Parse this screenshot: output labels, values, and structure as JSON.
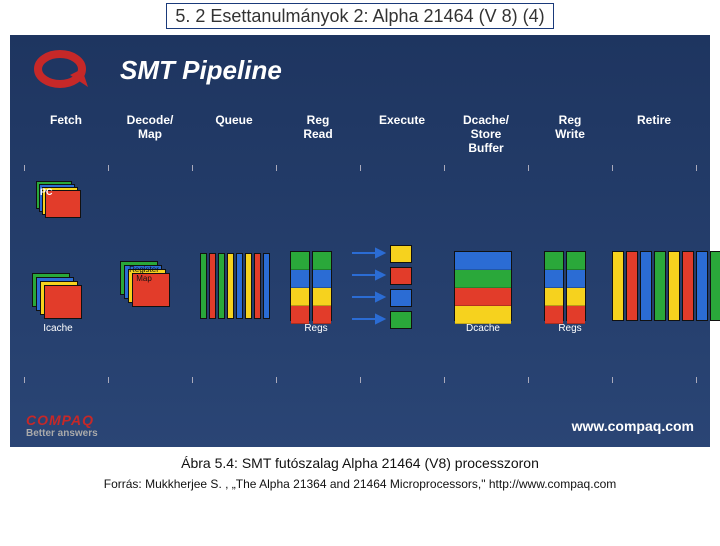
{
  "slide_title": "5. 2 Esettanulmányok 2: Alpha 21464 (V 8) (4)",
  "diagram": {
    "title": "SMT Pipeline",
    "background": "#24406e",
    "stages": [
      {
        "label_line1": "Fetch"
      },
      {
        "label_line1": "Decode/",
        "label_line2": "Map"
      },
      {
        "label_line1": "Queue"
      },
      {
        "label_line1": "Reg",
        "label_line2": "Read"
      },
      {
        "label_line1": "Execute"
      },
      {
        "label_line1": "Dcache/",
        "label_line2": "Store",
        "label_line3": "Buffer"
      },
      {
        "label_line1": "Reg",
        "label_line2": "Write"
      },
      {
        "label_line1": "Retire"
      }
    ],
    "stage_width_pct": 12.5,
    "thread_colors": [
      "#2aa83a",
      "#2b6cd4",
      "#f6d21e",
      "#e23c2a"
    ],
    "pc_label": "PC",
    "regmap_label": "Register\nMap",
    "icache_label": "Icache",
    "regs_label": "Regs",
    "dcache_label": "Dcache",
    "queue_bar_colors": [
      "#2aa83a",
      "#e23c2a",
      "#2aa83a",
      "#f6d21e",
      "#2b6cd4",
      "#f6d21e",
      "#e23c2a",
      "#2b6cd4"
    ],
    "retire_bar_colors": [
      "#f6d21e",
      "#e23c2a",
      "#2b6cd4",
      "#2aa83a",
      "#f6d21e",
      "#e23c2a",
      "#2b6cd4",
      "#2aa83a"
    ],
    "arrow_color": "#2b6cd4",
    "exec_box_colors": [
      "#f6d21e",
      "#e23c2a",
      "#2b6cd4",
      "#2aa83a"
    ],
    "dcache_row_colors": [
      "#2b6cd4",
      "#2aa83a",
      "#e23c2a",
      "#f6d21e"
    ],
    "q_logo_color": "#c62828"
  },
  "footer": {
    "brand": "COMPAQ",
    "tagline": "Better answers",
    "url": "www.compaq.com"
  },
  "caption": "Ábra 5.4: SMT futószalag Alpha 21464 (V8) processzoron",
  "source": "Forrás: Mukkherjee S. , „The Alpha 21364 and 21464 Microprocessors,\" http://www.compaq.com"
}
